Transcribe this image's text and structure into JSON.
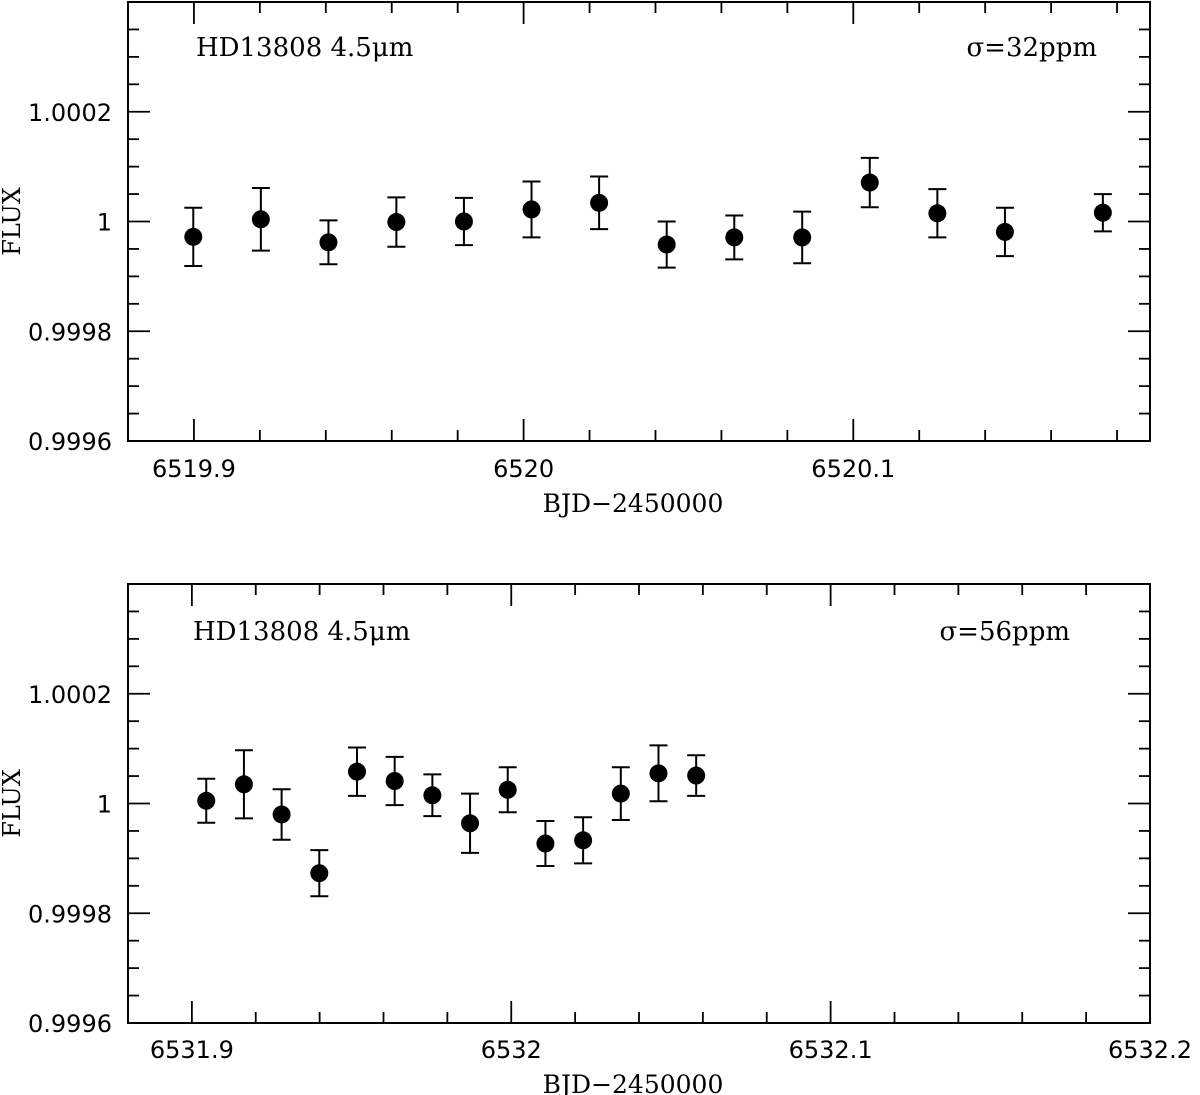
{
  "chart_data": [
    {
      "type": "scatter",
      "title": "",
      "annotation_left": "HD13808 4.5μm",
      "annotation_right": "σ=32ppm",
      "xlabel": "BJD−2450000",
      "ylabel": "FLUX",
      "xlim": [
        6519.88,
        6520.19
      ],
      "ylim": [
        0.9996,
        1.0004
      ],
      "x_ticks": [
        6519.9,
        6520,
        6520.1
      ],
      "x_tick_labels": [
        "6519.9",
        "6520",
        "6520.1"
      ],
      "y_ticks": [
        0.9996,
        0.9998,
        1.0,
        1.0002
      ],
      "y_tick_labels": [
        "0.9996",
        "0.9998",
        "1",
        "1.0002"
      ],
      "grid": false,
      "points": [
        {
          "x": 6519.8998,
          "y": 0.999972,
          "err": 5.3e-05
        },
        {
          "x": 6519.9203,
          "y": 1.000004,
          "err": 5.7e-05
        },
        {
          "x": 6519.9408,
          "y": 0.999962,
          "err": 4e-05
        },
        {
          "x": 6519.9614,
          "y": 0.999999,
          "err": 4.5e-05
        },
        {
          "x": 6519.9819,
          "y": 1.0,
          "err": 4.3e-05
        },
        {
          "x": 6520.0024,
          "y": 1.000022,
          "err": 5.1e-05
        },
        {
          "x": 6520.0229,
          "y": 1.000034,
          "err": 4.8e-05
        },
        {
          "x": 6520.0434,
          "y": 0.999958,
          "err": 4.2e-05
        },
        {
          "x": 6520.0639,
          "y": 0.999971,
          "err": 4e-05
        },
        {
          "x": 6520.0845,
          "y": 0.999971,
          "err": 4.7e-05
        },
        {
          "x": 6520.105,
          "y": 1.000071,
          "err": 4.5e-05
        },
        {
          "x": 6520.1255,
          "y": 1.000015,
          "err": 4.4e-05
        },
        {
          "x": 6520.146,
          "y": 0.999981,
          "err": 4.4e-05
        },
        {
          "x": 6520.1757,
          "y": 1.000016,
          "err": 3.4e-05
        }
      ]
    },
    {
      "type": "scatter",
      "title": "",
      "annotation_left": "HD13808 4.5μm",
      "annotation_right": "σ=56ppm",
      "xlabel": "BJD−2450000",
      "ylabel": "FLUX",
      "xlim": [
        6531.88,
        6532.2
      ],
      "ylim": [
        0.9996,
        1.0004
      ],
      "x_ticks": [
        6531.9,
        6532,
        6532.1,
        6532.2
      ],
      "x_tick_labels": [
        "6531.9",
        "6532",
        "6532.1",
        "6532.2"
      ],
      "y_ticks": [
        0.9996,
        0.9998,
        1.0,
        1.0002
      ],
      "y_tick_labels": [
        "0.9996",
        "0.9998",
        "1",
        "1.0002"
      ],
      "grid": false,
      "points": [
        {
          "x": 6531.9045,
          "y": 1.000005,
          "err": 4e-05
        },
        {
          "x": 6531.9163,
          "y": 1.000035,
          "err": 6.2e-05
        },
        {
          "x": 6531.9281,
          "y": 0.99998,
          "err": 4.6e-05
        },
        {
          "x": 6531.9399,
          "y": 0.999873,
          "err": 4.2e-05
        },
        {
          "x": 6531.9517,
          "y": 1.000058,
          "err": 4.4e-05
        },
        {
          "x": 6531.9635,
          "y": 1.000041,
          "err": 4.4e-05
        },
        {
          "x": 6531.9753,
          "y": 1.000015,
          "err": 3.8e-05
        },
        {
          "x": 6531.9871,
          "y": 0.999964,
          "err": 5.4e-05
        },
        {
          "x": 6531.9989,
          "y": 1.000025,
          "err": 4.1e-05
        },
        {
          "x": 6532.0107,
          "y": 0.999927,
          "err": 4.1e-05
        },
        {
          "x": 6532.0225,
          "y": 0.999933,
          "err": 4.2e-05
        },
        {
          "x": 6532.0343,
          "y": 1.000018,
          "err": 4.8e-05
        },
        {
          "x": 6532.0461,
          "y": 1.000055,
          "err": 5.1e-05
        },
        {
          "x": 6532.0579,
          "y": 1.000051,
          "err": 3.7e-05
        }
      ]
    }
  ]
}
